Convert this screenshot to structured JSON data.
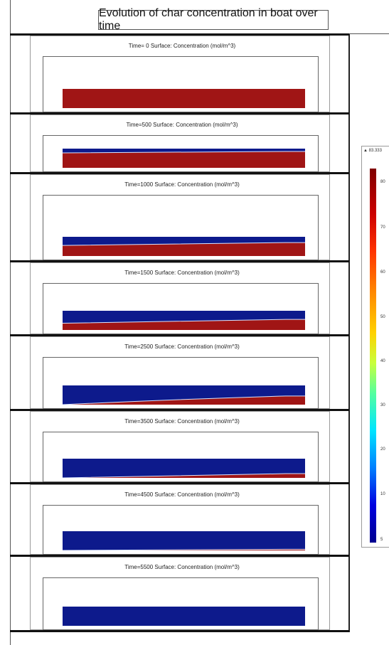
{
  "title": "Evolution of char concentration in boat over time",
  "panels": [
    {
      "label": "Time=  0  Surface: Concentration (mol/m^3)",
      "char_fraction_left": 1.0,
      "char_fraction_right": 1.0
    },
    {
      "label": "Time=500  Surface: Concentration (mol/m^3)",
      "char_fraction_left": 0.78,
      "char_fraction_right": 0.85
    },
    {
      "label": "Time=1000  Surface: Concentration (mol/m^3)",
      "char_fraction_left": 0.55,
      "char_fraction_right": 0.7
    },
    {
      "label": "Time=1500  Surface: Concentration (mol/m^3)",
      "char_fraction_left": 0.35,
      "char_fraction_right": 0.55
    },
    {
      "label": "Time=2500  Surface: Concentration (mol/m^3)",
      "char_fraction_left": 0.0,
      "char_fraction_right": 0.45
    },
    {
      "label": "Time=3500  Surface: Concentration (mol/m^3)",
      "char_fraction_left": 0.0,
      "char_fraction_right": 0.22
    },
    {
      "label": "Time=4500  Surface: Concentration (mol/m^3)",
      "char_fraction_left": 0.0,
      "char_fraction_right": 0.06
    },
    {
      "label": "Time=5500  Surface: Concentration (mol/m^3)",
      "char_fraction_left": 0.0,
      "char_fraction_right": 0.0
    }
  ],
  "colorbar": {
    "max_label": "▲ 83.333",
    "ticks": [
      "80",
      "70",
      "60",
      "50",
      "40",
      "30",
      "20",
      "10",
      "5"
    ],
    "colors": {
      "high": "#7f0000",
      "low": "#00008f"
    }
  },
  "colors": {
    "char": "#a01515",
    "depleted": "#0d1a8c"
  }
}
